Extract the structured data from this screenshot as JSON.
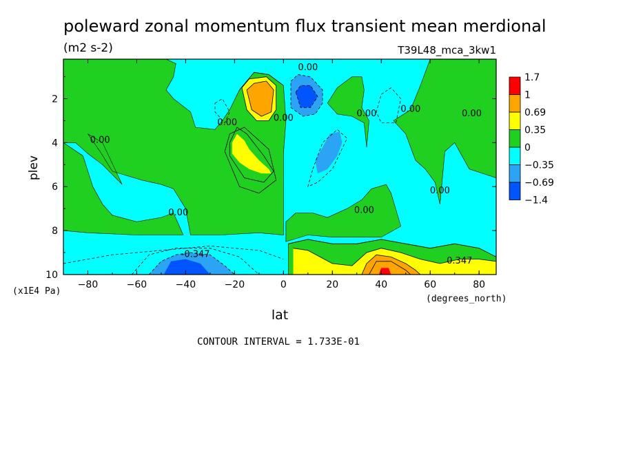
{
  "chart_data": {
    "type": "heatmap",
    "title": "poleward zonal momentum flux transient mean merdional",
    "units_label": "(m2 s-2)",
    "experiment_label": "T39L48_mca_3kw1",
    "xlabel": "lat",
    "x_units_label": "(degrees_north)",
    "ylabel": "plev",
    "y_units_label": "(x1E4 Pa)",
    "contour_interval_text": "CONTOUR INTERVAL = 1.733E-01",
    "xlim": [
      -90,
      87
    ],
    "ylim": [
      10,
      0.2
    ],
    "x_ticks": [
      -80,
      -60,
      -40,
      -20,
      0,
      20,
      40,
      60,
      80
    ],
    "x_tick_labels": [
      "−80",
      "−60",
      "−40",
      "−20",
      "0",
      "20",
      "40",
      "60",
      "80"
    ],
    "y_ticks": [
      2,
      4,
      6,
      8,
      10
    ],
    "y_tick_labels": [
      "2",
      "4",
      "6",
      "8",
      "10"
    ],
    "colorbar": {
      "colors": [
        "#0055ff",
        "#2ba4f5",
        "#00ffff",
        "#20d020",
        "#ffff00",
        "#ffa500",
        "#ff0000"
      ],
      "labels": [
        "1.7",
        "1",
        "0.69",
        "0.35",
        "0",
        "−0.35",
        "−0.69",
        "−1.4"
      ]
    },
    "contour_labels": [
      {
        "text": "0.00",
        "x": 10,
        "y": 0.7
      },
      {
        "text": "0.00",
        "x": -23,
        "y": 3.2
      },
      {
        "text": "0.00",
        "x": 0,
        "y": 3.0
      },
      {
        "text": "0.00",
        "x": -75,
        "y": 4.0
      },
      {
        "text": "0.00",
        "x": -43,
        "y": 7.3
      },
      {
        "text": "0.00",
        "x": 33,
        "y": 7.2
      },
      {
        "text": "0.00",
        "x": 64,
        "y": 6.3
      },
      {
        "text": "0.00",
        "x": 34,
        "y": 2.8
      },
      {
        "text": "0.00",
        "x": 52,
        "y": 2.6
      },
      {
        "text": "0.00",
        "x": 77,
        "y": 2.8
      },
      {
        "text": "-0.347",
        "x": -36,
        "y": 9.2
      },
      {
        "text": "0.347",
        "x": 72,
        "y": 9.5
      }
    ],
    "field_regions": [
      {
        "level": 0,
        "name": "background",
        "value": -0.1
      },
      {
        "level": 1,
        "name": "positive_broad_sh",
        "value": 0.1
      },
      {
        "level": 1,
        "name": "positive_mid_nh",
        "value": 0.1
      },
      {
        "level": 1,
        "name": "positive_lower_nh",
        "value": 0.1
      },
      {
        "level": 1,
        "name": "positive_upper_nh",
        "value": 0.1
      },
      {
        "level": 1,
        "name": "positive_polar_nh",
        "value": 0.1
      },
      {
        "level": 2,
        "name": "yellow_sh_upper",
        "value": 0.5,
        "center": [
          -10,
          2
        ]
      },
      {
        "level": 2,
        "name": "yellow_sh_mid",
        "value": 0.5,
        "center": [
          -15,
          4.5
        ]
      },
      {
        "level": 2,
        "name": "yellow_nh_surface",
        "value": 0.5,
        "center": [
          40,
          9.5
        ]
      },
      {
        "level": 3,
        "name": "orange_sh_upper",
        "value": 0.85,
        "center": [
          -10,
          1.8
        ]
      },
      {
        "level": 3,
        "name": "orange_nh_surface",
        "value": 0.85,
        "center": [
          40,
          9.7
        ]
      },
      {
        "level": 4,
        "name": "red_nh_surface",
        "value": 1.4,
        "center": [
          42,
          9.9
        ]
      },
      {
        "level": -1,
        "name": "blue_sh_surface",
        "value": -0.5,
        "center": [
          -40,
          9.7
        ]
      },
      {
        "level": -1,
        "name": "blue_nh_upper",
        "value": -0.5,
        "center": [
          10,
          1.9
        ]
      },
      {
        "level": -1,
        "name": "blue_nh_mid",
        "value": -0.5,
        "center": [
          18,
          4.2
        ]
      },
      {
        "level": -2,
        "name": "darkblue_sh_surface",
        "value": -1.0,
        "center": [
          -40,
          9.9
        ]
      },
      {
        "level": -2,
        "name": "darkblue_nh_upper",
        "value": -1.0,
        "center": [
          9,
          1.8
        ]
      }
    ]
  }
}
